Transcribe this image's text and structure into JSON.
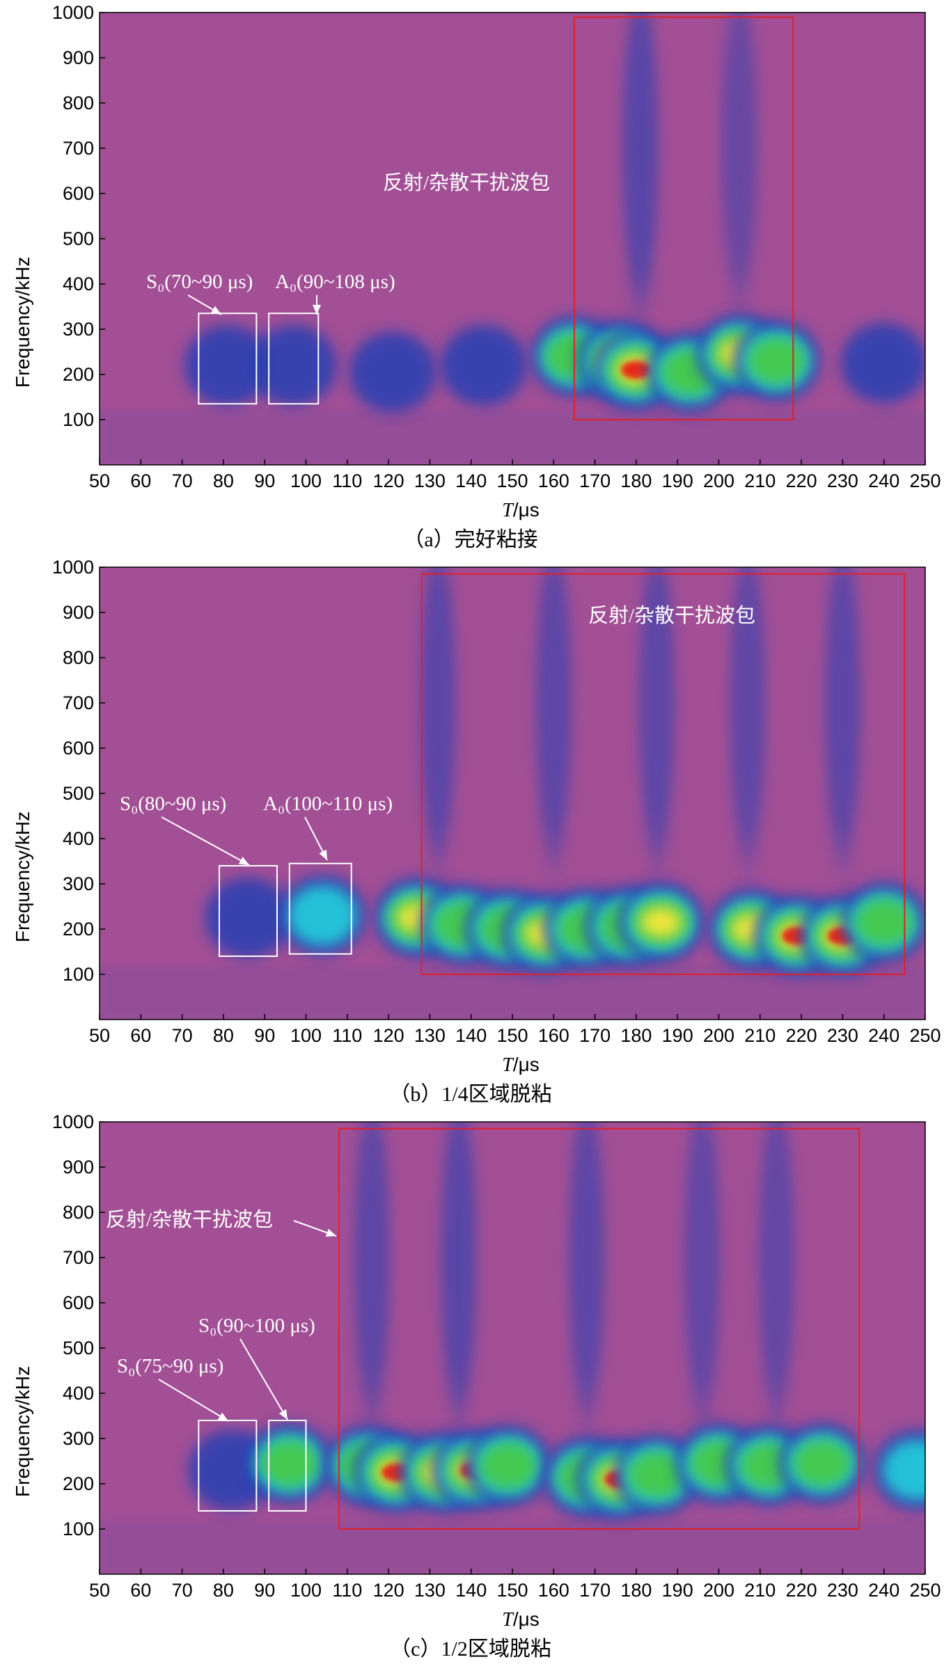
{
  "colors": {
    "background": "#a24f95",
    "band_cold": "#283fb3",
    "band_cyan": "#21c9d9",
    "band_green": "#47c94a",
    "band_yellow": "#f5e83a",
    "band_red": "#e82418",
    "interference_box": "#e0202a",
    "mode_box": "#ffffff"
  },
  "chart_data": [
    {
      "type": "heatmap",
      "panel": "a",
      "caption": "（a）完好粘接",
      "xlabel_italic": "T",
      "xlabel_unit": "/μs",
      "ylabel": "Frequency/kHz",
      "xlim": [
        50,
        250
      ],
      "ylim": [
        0,
        1000
      ],
      "xticks": [
        "50",
        "60",
        "70",
        "80",
        "90",
        "100",
        "110",
        "120",
        "130",
        "140",
        "150",
        "160",
        "170",
        "180",
        "190",
        "200",
        "210",
        "220",
        "230",
        "240",
        "250"
      ],
      "yticks": [
        "100",
        "200",
        "300",
        "400",
        "500",
        "600",
        "700",
        "800",
        "900",
        "1000"
      ],
      "boxes": [
        {
          "kind": "mode",
          "label": "S₀(70~90 μs)",
          "x": [
            74,
            88
          ],
          "y": [
            135,
            335
          ]
        },
        {
          "kind": "mode",
          "label": "A₀(90~108 μs)",
          "x": [
            91,
            103
          ],
          "y": [
            135,
            335
          ]
        },
        {
          "kind": "interference",
          "label": "反射/杂散干扰波包",
          "x": [
            165,
            218
          ],
          "y": [
            100,
            990
          ]
        }
      ],
      "blobs": [
        {
          "t": 81,
          "f": 220,
          "level": 0.28
        },
        {
          "t": 97,
          "f": 220,
          "level": 0.28
        },
        {
          "t": 121,
          "f": 205,
          "level": 0.26
        },
        {
          "t": 143,
          "f": 220,
          "level": 0.24
        },
        {
          "t": 165,
          "f": 240,
          "level": 0.55
        },
        {
          "t": 176,
          "f": 230,
          "level": 0.82
        },
        {
          "t": 180,
          "f": 210,
          "level": 1.0
        },
        {
          "t": 193,
          "f": 205,
          "level": 0.55
        },
        {
          "t": 205,
          "f": 245,
          "level": 0.85
        },
        {
          "t": 214,
          "f": 230,
          "level": 0.5
        },
        {
          "t": 240,
          "f": 225,
          "level": 0.3
        }
      ],
      "streaks": [
        {
          "t": 181,
          "f0": 400,
          "f1": 1000,
          "level": 0.35
        },
        {
          "t": 205,
          "f0": 420,
          "f1": 1000,
          "level": 0.22
        }
      ]
    },
    {
      "type": "heatmap",
      "panel": "b",
      "caption": "（b）1/4区域脱粘",
      "xlabel_italic": "T",
      "xlabel_unit": "/μs",
      "ylabel": "Frequency/kHz",
      "xlim": [
        50,
        250
      ],
      "ylim": [
        0,
        1000
      ],
      "xticks": [
        "50",
        "60",
        "70",
        "80",
        "90",
        "100",
        "110",
        "120",
        "130",
        "140",
        "150",
        "160",
        "170",
        "180",
        "190",
        "200",
        "210",
        "220",
        "230",
        "240",
        "250"
      ],
      "yticks": [
        "100",
        "200",
        "300",
        "400",
        "500",
        "600",
        "700",
        "800",
        "900",
        "1000"
      ],
      "boxes": [
        {
          "kind": "mode",
          "label": "S₀(80~90 μs)",
          "x": [
            79,
            93
          ],
          "y": [
            140,
            340
          ]
        },
        {
          "kind": "mode",
          "label": "A₀(100~110 μs)",
          "x": [
            96,
            111
          ],
          "y": [
            145,
            345
          ]
        },
        {
          "kind": "interference",
          "label": "反射/杂散干扰波包",
          "x": [
            128,
            245
          ],
          "y": [
            100,
            985
          ]
        }
      ],
      "blobs": [
        {
          "t": 86,
          "f": 225,
          "level": 0.28
        },
        {
          "t": 104,
          "f": 230,
          "level": 0.42
        },
        {
          "t": 127,
          "f": 225,
          "level": 0.72
        },
        {
          "t": 138,
          "f": 210,
          "level": 0.55
        },
        {
          "t": 149,
          "f": 200,
          "level": 0.7
        },
        {
          "t": 158,
          "f": 190,
          "level": 0.85
        },
        {
          "t": 168,
          "f": 200,
          "level": 0.62
        },
        {
          "t": 178,
          "f": 205,
          "level": 0.7
        },
        {
          "t": 186,
          "f": 215,
          "level": 0.82
        },
        {
          "t": 208,
          "f": 200,
          "level": 0.75
        },
        {
          "t": 219,
          "f": 185,
          "level": 0.95
        },
        {
          "t": 230,
          "f": 185,
          "level": 0.88
        },
        {
          "t": 240,
          "f": 215,
          "level": 0.65
        }
      ],
      "streaks": [
        {
          "t": 132,
          "f0": 400,
          "f1": 1000,
          "level": 0.32
        },
        {
          "t": 160,
          "f0": 400,
          "f1": 1000,
          "level": 0.3
        },
        {
          "t": 185,
          "f0": 400,
          "f1": 1000,
          "level": 0.3
        },
        {
          "t": 207,
          "f0": 400,
          "f1": 1000,
          "level": 0.28
        },
        {
          "t": 230,
          "f0": 400,
          "f1": 1000,
          "level": 0.3
        }
      ]
    },
    {
      "type": "heatmap",
      "panel": "c",
      "caption": "（c）1/2区域脱粘",
      "xlabel_italic": "T",
      "xlabel_unit": "/μs",
      "ylabel": "Frequency/kHz",
      "xlim": [
        50,
        250
      ],
      "ylim": [
        0,
        1000
      ],
      "xticks": [
        "50",
        "60",
        "70",
        "80",
        "90",
        "100",
        "110",
        "120",
        "130",
        "140",
        "150",
        "160",
        "170",
        "180",
        "190",
        "200",
        "210",
        "220",
        "230",
        "240",
        "250"
      ],
      "yticks": [
        "100",
        "200",
        "300",
        "400",
        "500",
        "600",
        "700",
        "800",
        "900",
        "1000"
      ],
      "boxes": [
        {
          "kind": "mode",
          "label": "S₀(75~90 μs)",
          "x": [
            74,
            88
          ],
          "y": [
            140,
            340
          ]
        },
        {
          "kind": "mode",
          "label": "S₀(90~100 μs)",
          "x": [
            91,
            100
          ],
          "y": [
            140,
            340
          ]
        },
        {
          "kind": "interference",
          "label": "反射/杂散干扰波包",
          "x": [
            108,
            234
          ],
          "y": [
            100,
            985
          ]
        }
      ],
      "blobs": [
        {
          "t": 82,
          "f": 230,
          "level": 0.3
        },
        {
          "t": 96,
          "f": 245,
          "level": 0.55
        },
        {
          "t": 115,
          "f": 240,
          "level": 0.62
        },
        {
          "t": 122,
          "f": 225,
          "level": 0.9
        },
        {
          "t": 133,
          "f": 225,
          "level": 0.8
        },
        {
          "t": 141,
          "f": 230,
          "level": 0.92
        },
        {
          "t": 149,
          "f": 240,
          "level": 0.7
        },
        {
          "t": 168,
          "f": 215,
          "level": 0.7
        },
        {
          "t": 176,
          "f": 210,
          "level": 0.92
        },
        {
          "t": 185,
          "f": 220,
          "level": 0.6
        },
        {
          "t": 200,
          "f": 245,
          "level": 0.6
        },
        {
          "t": 212,
          "f": 240,
          "level": 0.55
        },
        {
          "t": 225,
          "f": 245,
          "level": 0.55
        },
        {
          "t": 248,
          "f": 230,
          "level": 0.45
        }
      ],
      "streaks": [
        {
          "t": 116,
          "f0": 400,
          "f1": 1000,
          "level": 0.3
        },
        {
          "t": 137,
          "f0": 400,
          "f1": 1000,
          "level": 0.34
        },
        {
          "t": 168,
          "f0": 400,
          "f1": 1000,
          "level": 0.3
        },
        {
          "t": 196,
          "f0": 400,
          "f1": 1000,
          "level": 0.26
        },
        {
          "t": 214,
          "f0": 400,
          "f1": 1000,
          "level": 0.26
        }
      ]
    }
  ]
}
